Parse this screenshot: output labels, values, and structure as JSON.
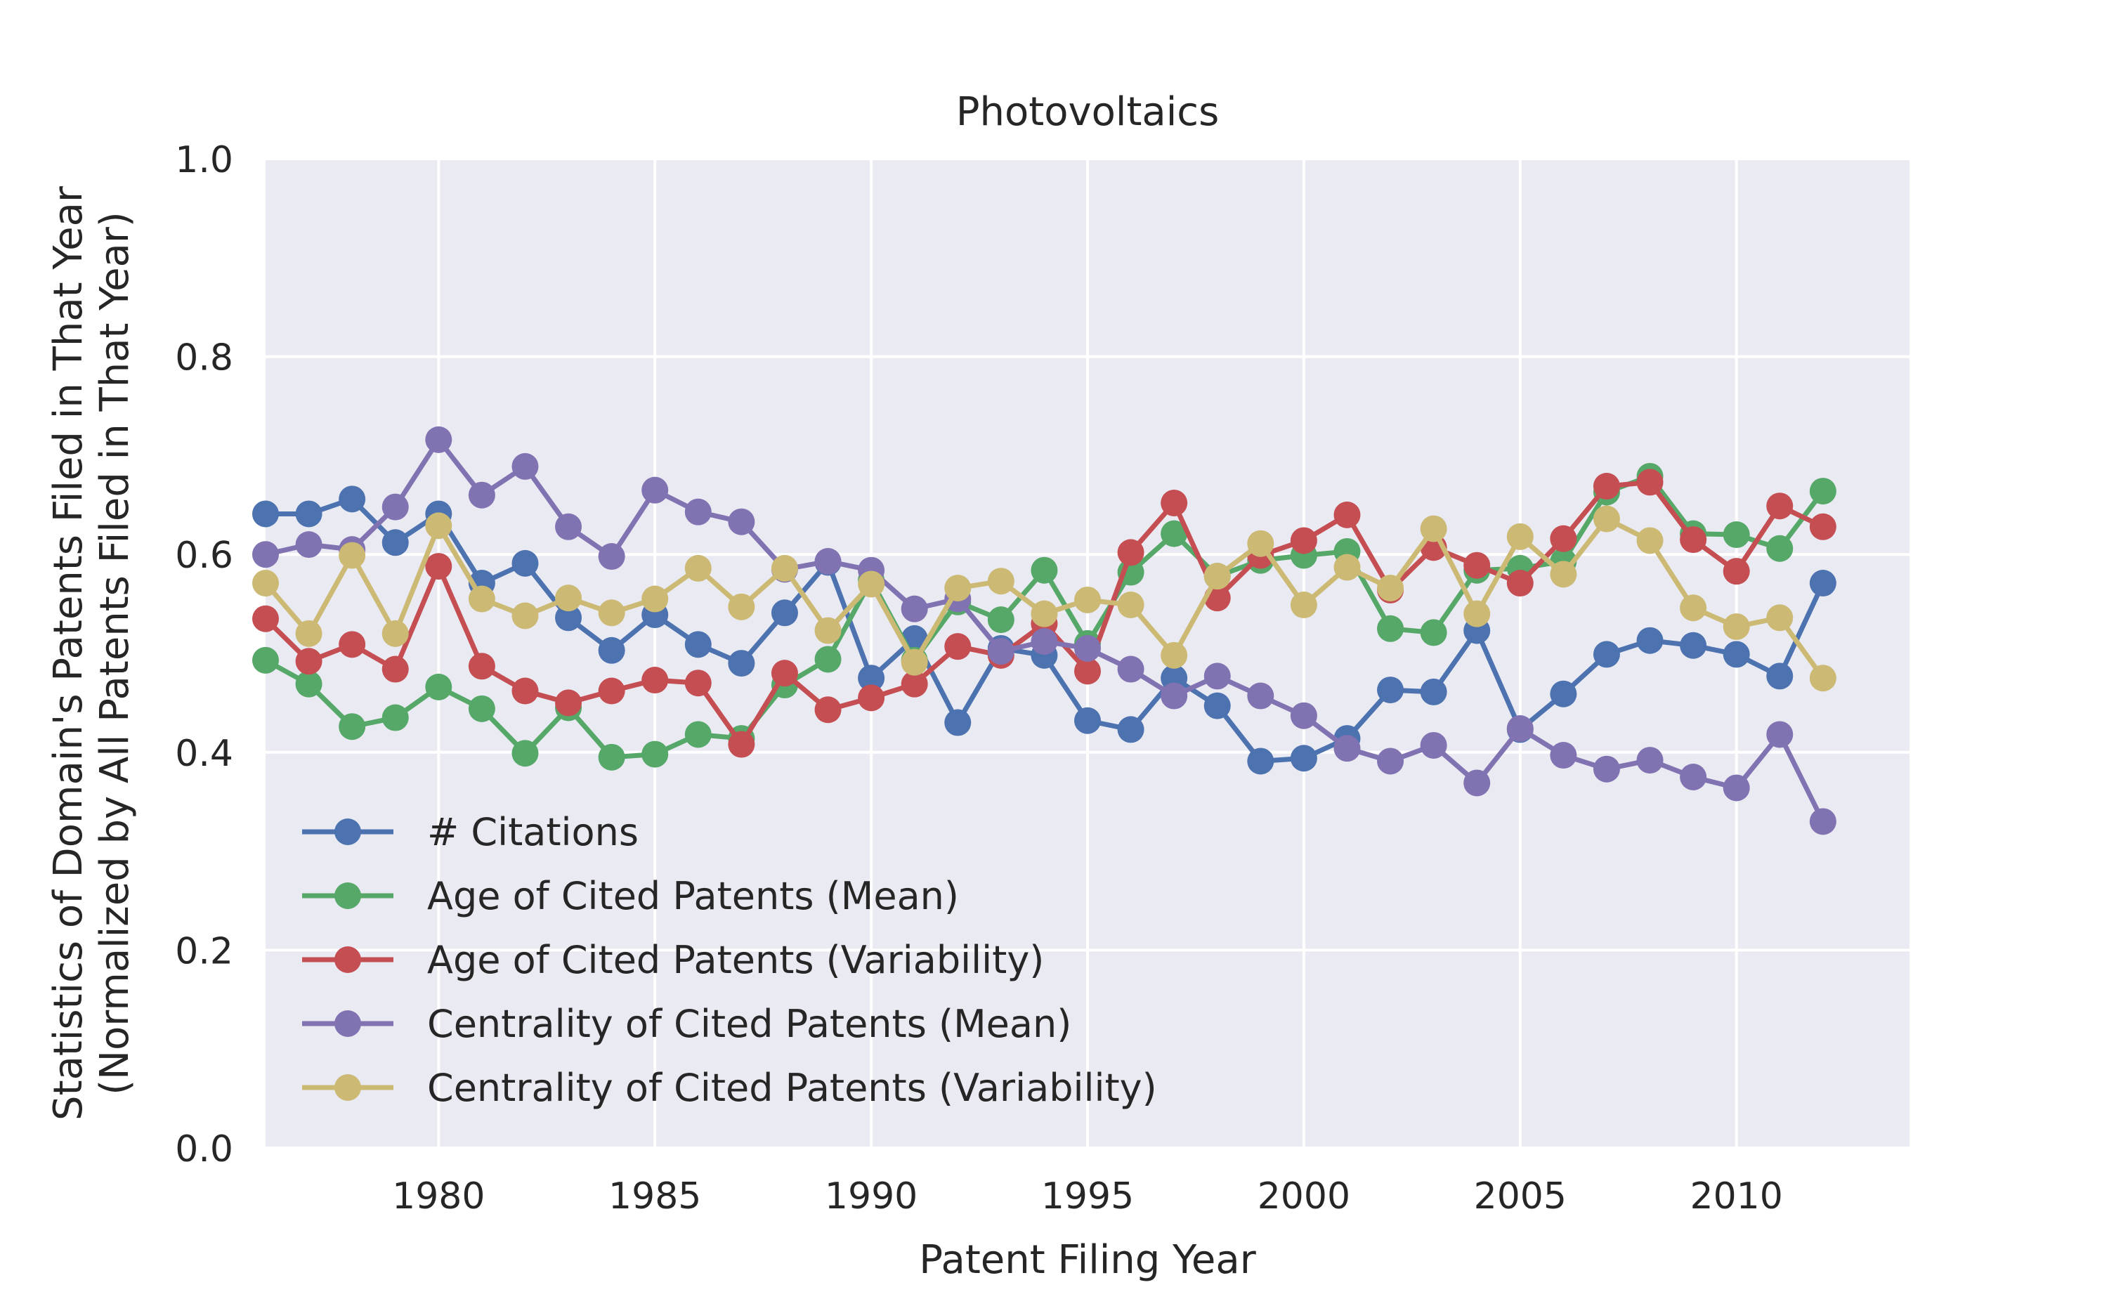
{
  "chart_data": {
    "type": "line",
    "title": "Photovoltaics",
    "xlabel": "Patent Filing Year",
    "ylabel_lines": [
      "Statistics of Domain's Patents Filed in That Year",
      "(Normalized by All Patents Filed in That Year)"
    ],
    "xlim": [
      1976,
      2014
    ],
    "ylim": [
      0,
      1
    ],
    "xticks": [
      1980,
      1985,
      1990,
      1995,
      2000,
      2005,
      2010
    ],
    "yticks": [
      "0.0",
      "0.2",
      "0.4",
      "0.6",
      "0.8",
      "1.0"
    ],
    "grid": true,
    "legend_position": "lower-left",
    "x": [
      1976,
      1977,
      1978,
      1979,
      1980,
      1981,
      1982,
      1983,
      1984,
      1985,
      1986,
      1987,
      1988,
      1989,
      1990,
      1991,
      1992,
      1993,
      1994,
      1995,
      1996,
      1997,
      1998,
      1999,
      2000,
      2001,
      2002,
      2003,
      2004,
      2005,
      2006,
      2007,
      2008,
      2009,
      2010,
      2011,
      2012
    ],
    "series": [
      {
        "name": "# Citations",
        "color": "#4c72b0",
        "values": [
          0.641,
          0.641,
          0.656,
          0.612,
          0.641,
          0.571,
          0.591,
          0.536,
          0.503,
          0.539,
          0.509,
          0.49,
          0.541,
          0.592,
          0.475,
          0.515,
          0.43,
          0.505,
          0.498,
          0.432,
          0.423,
          0.475,
          0.447,
          0.391,
          0.394,
          0.414,
          0.463,
          0.461,
          0.523,
          0.423,
          0.459,
          0.499,
          0.513,
          0.508,
          0.499,
          0.477,
          0.571
        ]
      },
      {
        "name": "Age of Cited Patents (Mean)",
        "color": "#55a868",
        "values": [
          0.493,
          0.469,
          0.426,
          0.435,
          0.466,
          0.444,
          0.399,
          0.445,
          0.395,
          0.398,
          0.418,
          0.414,
          0.468,
          0.494,
          0.574,
          0.493,
          0.552,
          0.534,
          0.584,
          0.51,
          0.582,
          0.621,
          0.578,
          0.594,
          0.599,
          0.603,
          0.525,
          0.521,
          0.584,
          0.586,
          0.593,
          0.663,
          0.679,
          0.621,
          0.62,
          0.606,
          0.664
        ]
      },
      {
        "name": "Age of Cited Patents (Variability)",
        "color": "#c44e52",
        "values": [
          0.535,
          0.492,
          0.509,
          0.484,
          0.588,
          0.487,
          0.462,
          0.45,
          0.462,
          0.473,
          0.47,
          0.408,
          0.48,
          0.443,
          0.455,
          0.469,
          0.507,
          0.498,
          0.53,
          0.482,
          0.602,
          0.652,
          0.556,
          0.599,
          0.614,
          0.64,
          0.564,
          0.607,
          0.589,
          0.571,
          0.616,
          0.669,
          0.673,
          0.615,
          0.583,
          0.649,
          0.628
        ]
      },
      {
        "name": "Centrality of Cited Patents (Mean)",
        "color": "#8172b2",
        "values": [
          0.6,
          0.61,
          0.605,
          0.648,
          0.716,
          0.66,
          0.689,
          0.628,
          0.598,
          0.665,
          0.643,
          0.633,
          0.585,
          0.593,
          0.584,
          0.545,
          0.555,
          0.502,
          0.512,
          0.505,
          0.484,
          0.457,
          0.477,
          0.457,
          0.437,
          0.404,
          0.391,
          0.407,
          0.369,
          0.424,
          0.397,
          0.383,
          0.392,
          0.375,
          0.364,
          0.418,
          0.33
        ]
      },
      {
        "name": "Centrality of Cited Patents (Variability)",
        "color": "#ccb974",
        "values": [
          0.571,
          0.52,
          0.599,
          0.52,
          0.629,
          0.555,
          0.538,
          0.556,
          0.541,
          0.555,
          0.586,
          0.547,
          0.586,
          0.523,
          0.57,
          0.491,
          0.566,
          0.573,
          0.54,
          0.554,
          0.549,
          0.498,
          0.578,
          0.611,
          0.549,
          0.587,
          0.566,
          0.626,
          0.54,
          0.618,
          0.58,
          0.636,
          0.614,
          0.546,
          0.527,
          0.536,
          0.475
        ]
      }
    ]
  }
}
